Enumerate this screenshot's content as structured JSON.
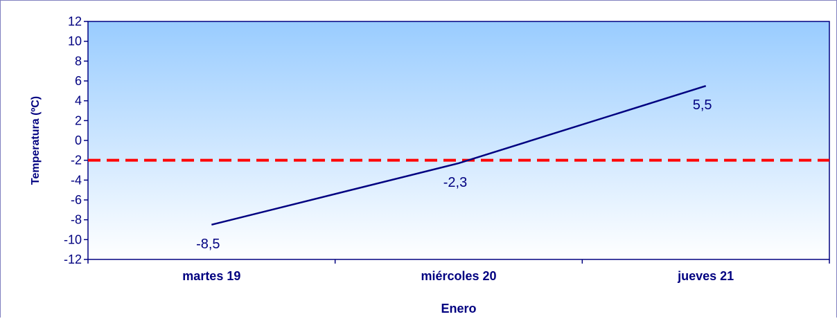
{
  "chart_data": {
    "type": "line",
    "title": "",
    "xlabel": "Enero",
    "ylabel": "Temperatura (ºC)",
    "categories": [
      "martes 19",
      "miércoles 20",
      "jueves 21"
    ],
    "series": [
      {
        "values": [
          -8.5,
          -2.3,
          5.5
        ],
        "value_labels": [
          "-8,5",
          "-2,3",
          "5,5"
        ],
        "color": "#000080"
      }
    ],
    "reference_line": {
      "value": -2,
      "color": "#ff0000",
      "style": "dashed"
    },
    "ylim": [
      -12,
      12
    ],
    "y_ticks": [
      12,
      10,
      8,
      6,
      4,
      2,
      0,
      -2,
      -4,
      -6,
      -8,
      -10,
      -12
    ],
    "grid": false,
    "legend": "none",
    "colors": {
      "axis_text": "#000080",
      "plot_border": "#000080",
      "plot_gradient_top": "#99ccff",
      "plot_gradient_bottom": "#ffffff",
      "frame_border": "#7f7fbf"
    }
  }
}
